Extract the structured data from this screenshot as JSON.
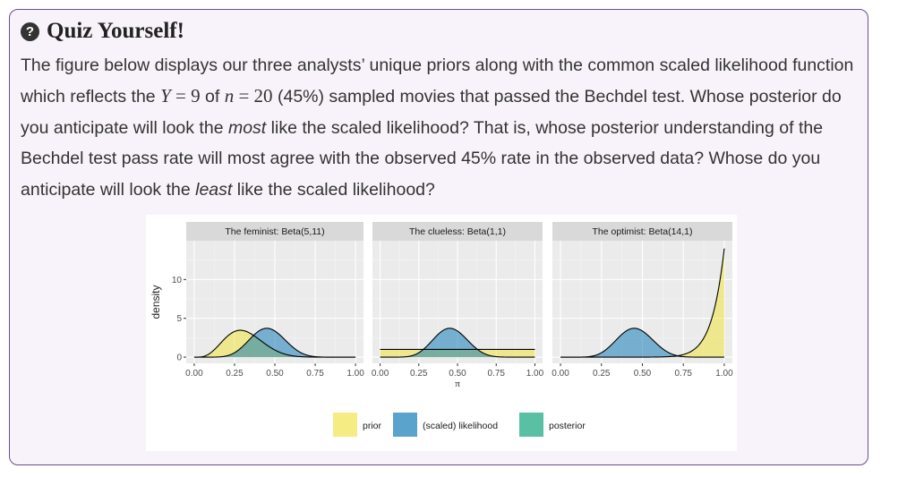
{
  "callout": {
    "icon": "question-circle-icon",
    "title": "Quiz Yourself!"
  },
  "paragraph": {
    "t1": "The figure below displays our three analysts’ unique priors along with the common scaled likelihood function which reflects the ",
    "Y": "Y",
    "eq1": " = 9",
    "t2": " of ",
    "n": "n",
    "eq2": " = 20",
    "t3": " (45%) sampled movies that passed the Bechdel test. Whose posterior do you anticipate will look the ",
    "most": "most",
    "t4": " like the scaled likelihood? That is, whose posterior understanding of the Bechdel test pass rate will most agree with the observed 45% rate in the observed data? Whose do you anticipate will look the ",
    "least": "least",
    "t5": " like the scaled likelihood?"
  },
  "colors": {
    "prior": "#f0e442",
    "likelihood": "#0072b2",
    "posterior": "#009e73",
    "panel_bg": "#ebebeb",
    "strip_bg": "#d9d9d9"
  },
  "chart_data": {
    "type": "area",
    "ylabel": "density",
    "xlabel": "π",
    "xlim": [
      0,
      1
    ],
    "ylim": [
      0,
      15
    ],
    "x_ticks": [
      "0.00",
      "0.25",
      "0.50",
      "0.75",
      "1.00"
    ],
    "y_ticks": [
      0,
      5,
      10
    ],
    "grid": true,
    "likelihood": {
      "y": 9,
      "n": 20
    },
    "facets": [
      {
        "title": "The feminist: Beta(5,11)",
        "alpha": 5,
        "beta": 11
      },
      {
        "title": "The clueless: Beta(1,1)",
        "alpha": 1,
        "beta": 1
      },
      {
        "title": "The optimist: Beta(14,1)",
        "alpha": 14,
        "beta": 1
      }
    ],
    "legend_position": "bottom",
    "legend": [
      {
        "key": "prior",
        "label": "prior"
      },
      {
        "key": "likelihood",
        "label": "(scaled) likelihood"
      },
      {
        "key": "posterior",
        "label": "posterior"
      }
    ]
  }
}
